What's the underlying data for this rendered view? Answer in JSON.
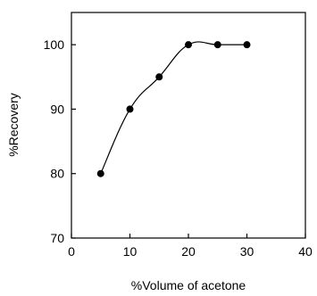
{
  "chart_data": {
    "type": "line",
    "title": "",
    "xlabel": "%Volume of acetone",
    "ylabel": "%Recovery",
    "xlim": [
      0,
      40
    ],
    "ylim": [
      70,
      105
    ],
    "xticks": [
      0,
      10,
      20,
      30,
      40
    ],
    "yticks": [
      70,
      80,
      90,
      100
    ],
    "grid": false,
    "series": [
      {
        "x": [
          5,
          10,
          15,
          20,
          25,
          30
        ],
        "y": [
          80,
          90,
          95,
          100,
          100,
          100
        ],
        "marker": "filled-circle",
        "line": "smooth",
        "color": "#000000"
      }
    ]
  }
}
